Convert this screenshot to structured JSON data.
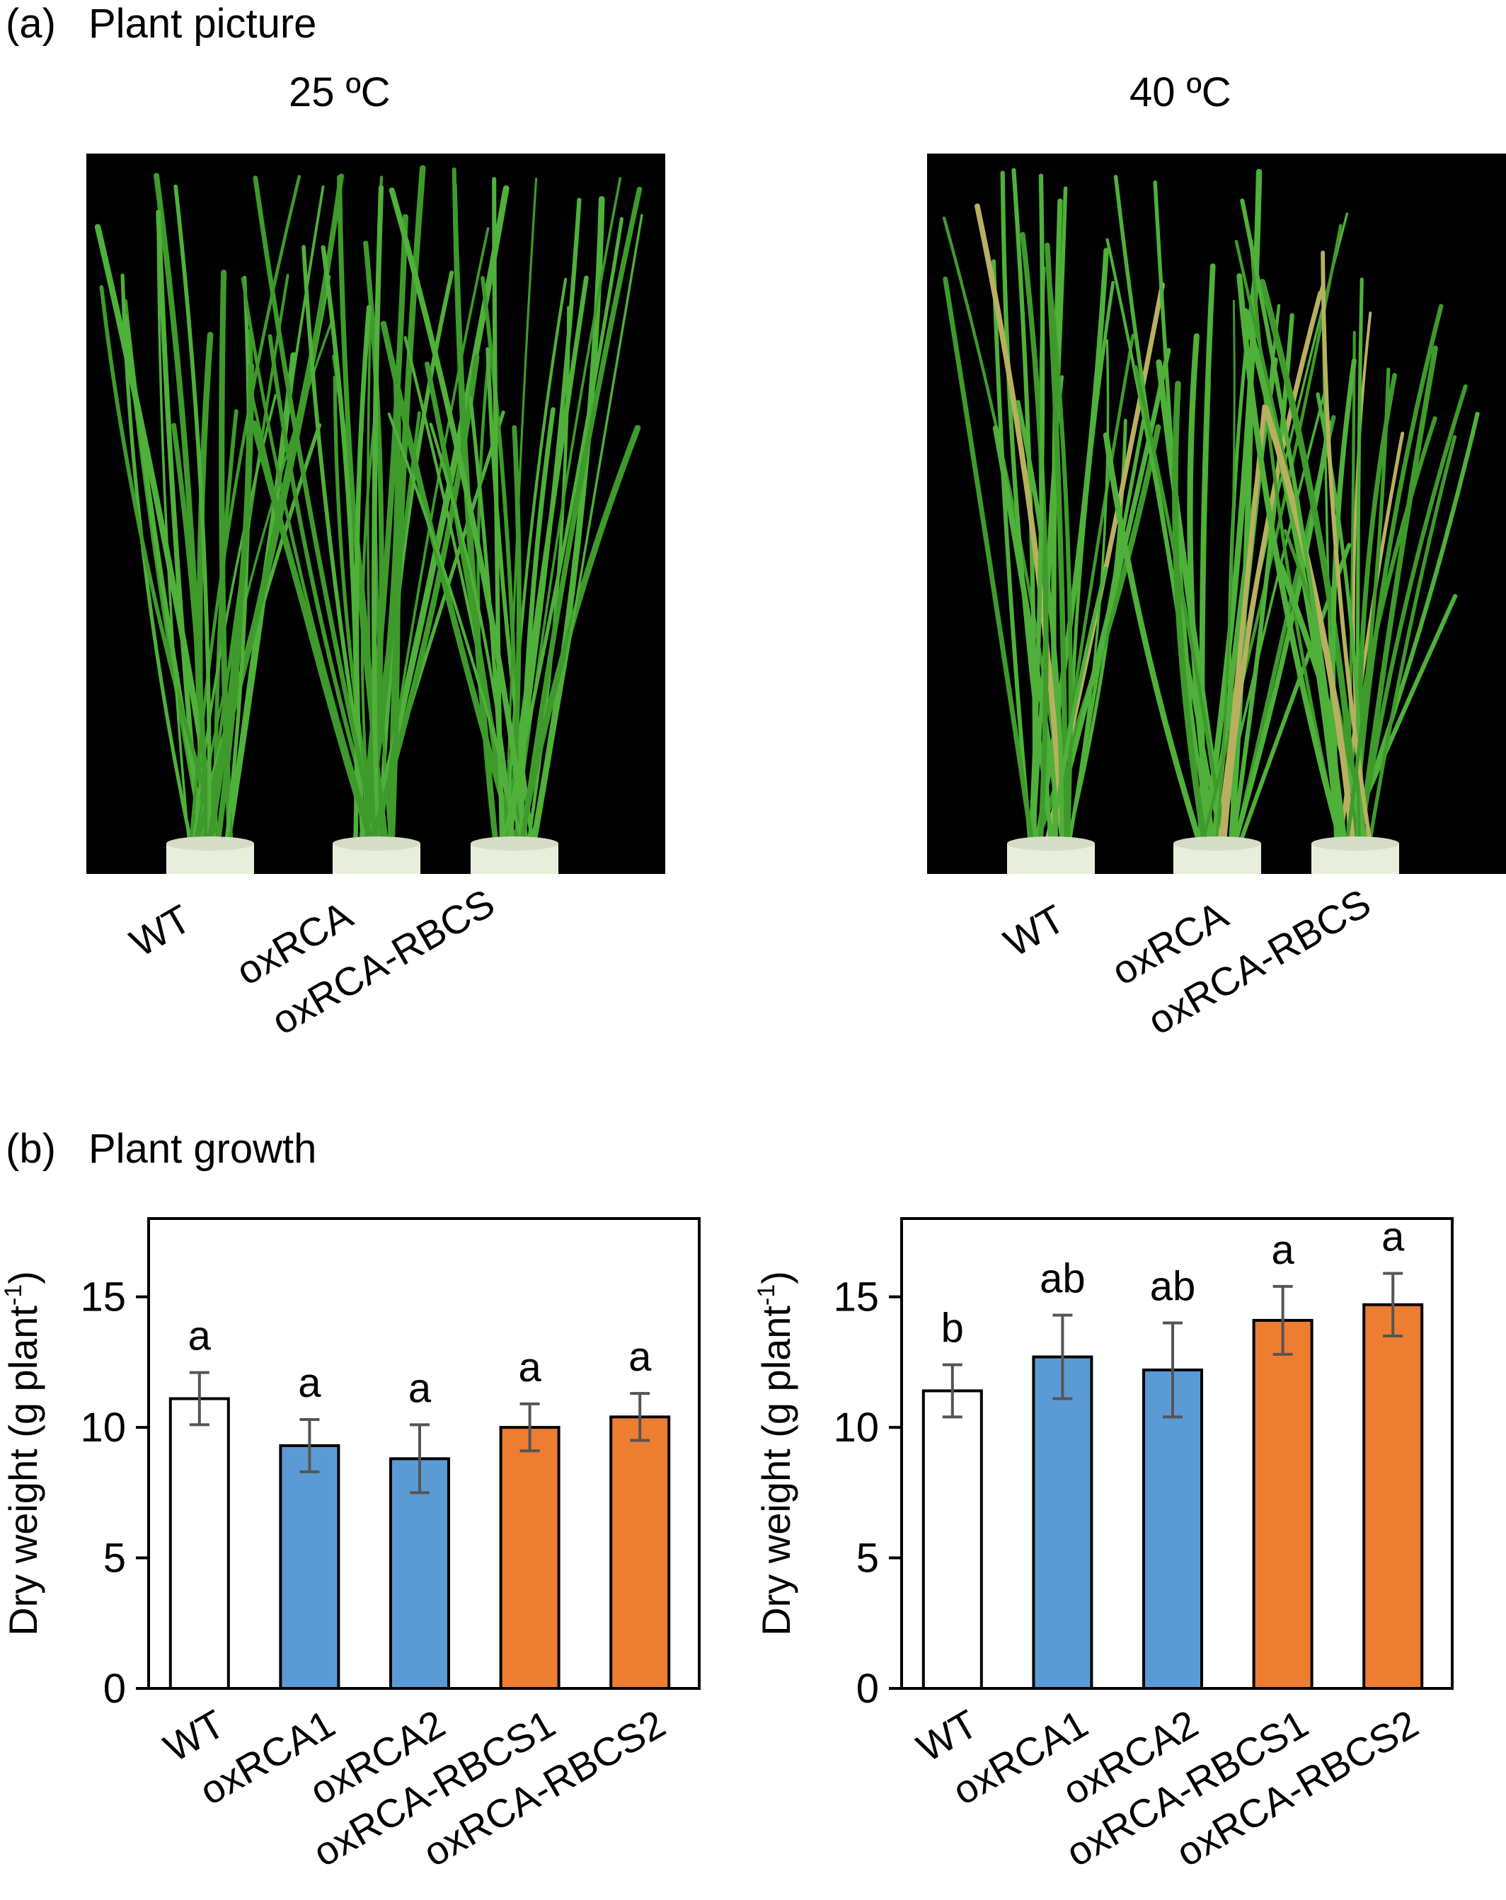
{
  "panel_a": {
    "letter": "(a)",
    "title": "Plant picture",
    "conditions": [
      {
        "temp": "25 ºC",
        "genotypes": [
          "WT",
          "oxRCA",
          "oxRCA-RBCS"
        ]
      },
      {
        "temp": "40 ºC",
        "genotypes": [
          "WT",
          "oxRCA",
          "oxRCA-RBCS"
        ]
      }
    ]
  },
  "panel_b": {
    "letter": "(b)",
    "title": "Plant growth"
  },
  "colors": {
    "wt": "#ffffff",
    "oxRCA": "#5b9bd5",
    "oxRCA_RBCS": "#ed7d31",
    "photo_bg": "#000000",
    "leaf": "#3f9a2c"
  },
  "chart_data": [
    {
      "type": "bar",
      "condition": "25 ºC",
      "categories": [
        "WT",
        "oxRCA1",
        "oxRCA2",
        "oxRCA-RBCS1",
        "oxRCA-RBCS2"
      ],
      "values": [
        11.1,
        9.3,
        8.8,
        10.0,
        10.4
      ],
      "error": [
        1.0,
        1.0,
        1.3,
        0.9,
        0.9
      ],
      "letters": [
        "a",
        "a",
        "a",
        "a",
        "a"
      ],
      "ylabel": "Dry weight (g plant-1)",
      "ylabel_main": "Dry weight (g plant",
      "ylabel_sup": "-1",
      "ylabel_end": ")",
      "ylim": [
        0,
        18
      ],
      "yticks": [
        0,
        5,
        10,
        15
      ],
      "grid": false
    },
    {
      "type": "bar",
      "condition": "40 ºC",
      "categories": [
        "WT",
        "oxRCA1",
        "oxRCA2",
        "oxRCA-RBCS1",
        "oxRCA-RBCS2"
      ],
      "values": [
        11.4,
        12.7,
        12.2,
        14.1,
        14.7
      ],
      "error": [
        1.0,
        1.6,
        1.8,
        1.3,
        1.2
      ],
      "letters": [
        "b",
        "ab",
        "ab",
        "a",
        "a"
      ],
      "ylabel": "Dry weight (g plant-1)",
      "ylabel_main": "Dry weight (g plant",
      "ylabel_sup": "-1",
      "ylabel_end": ")",
      "ylim": [
        0,
        18
      ],
      "yticks": [
        0,
        5,
        10,
        15
      ],
      "grid": false
    }
  ]
}
